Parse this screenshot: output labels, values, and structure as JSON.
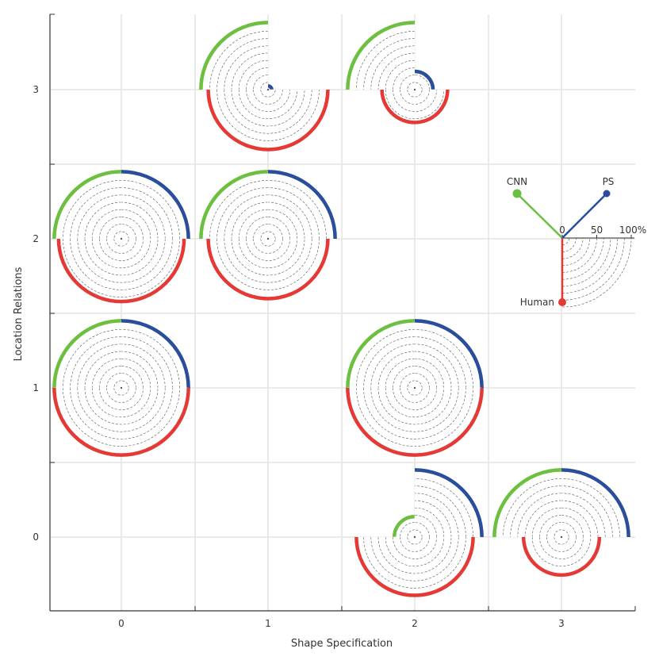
{
  "chart_data": {
    "type": "polar-glyph-grid",
    "title": "",
    "xlabel": "Shape Specification",
    "ylabel": "Location Relations",
    "x_ticks": [
      "0",
      "1",
      "2",
      "3"
    ],
    "y_ticks": [
      "0",
      "1",
      "2",
      "3"
    ],
    "grid": true,
    "series": [
      {
        "name": "CNN",
        "color": "#6cbf3f",
        "sector": "upper-left quarter"
      },
      {
        "name": "PS",
        "color": "#2a4e9b",
        "sector": "upper-right quarter"
      },
      {
        "name": "Human",
        "color": "#e53935",
        "sector": "lower half"
      }
    ],
    "unit": "%",
    "max_value": 100,
    "rings_step": 10,
    "cells": [
      {
        "shape": 0,
        "location": 2,
        "CNN": 92,
        "PS": 92,
        "Human": 86
      },
      {
        "shape": 1,
        "location": 2,
        "CNN": 92,
        "PS": 92,
        "Human": 82
      },
      {
        "shape": 0,
        "location": 1,
        "CNN": 92,
        "PS": 92,
        "Human": 92
      },
      {
        "shape": 2,
        "location": 1,
        "CNN": 92,
        "PS": 92,
        "Human": 92
      },
      {
        "shape": 1,
        "location": 3,
        "CNN": 92,
        "PS": 5,
        "Human": 82
      },
      {
        "shape": 2,
        "location": 3,
        "CNN": 92,
        "PS": 25,
        "Human": 45
      },
      {
        "shape": 2,
        "location": 0,
        "CNN": 28,
        "PS": 92,
        "Human": 80
      },
      {
        "shape": 3,
        "location": 0,
        "CNN": 92,
        "PS": 92,
        "Human": 52
      }
    ],
    "legend": {
      "placement": "right-middle",
      "scale_labels": [
        "0",
        "50",
        "100%"
      ],
      "labels": {
        "cnn": "CNN",
        "ps": "PS",
        "human": "Human"
      }
    }
  }
}
